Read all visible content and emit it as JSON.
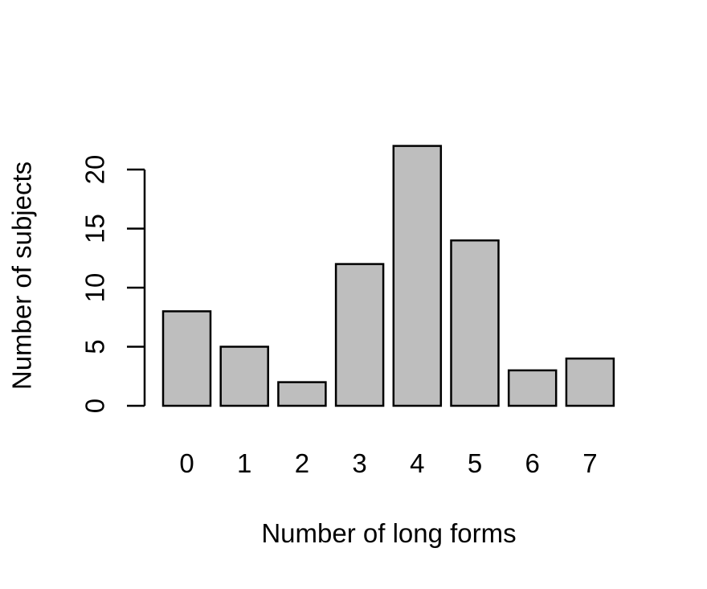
{
  "chart_data": {
    "type": "bar",
    "title": "",
    "xlabel": "Number of long forms",
    "ylabel": "Number of subjects",
    "categories": [
      "0",
      "1",
      "2",
      "3",
      "4",
      "5",
      "6",
      "7"
    ],
    "values": [
      8,
      5,
      2,
      12,
      22,
      14,
      3,
      4
    ],
    "ylim": [
      0,
      22
    ],
    "yticks": [
      "0",
      "5",
      "10",
      "15",
      "20"
    ],
    "grid": false,
    "legend": "none",
    "bar_color": "#bebebe",
    "edge_color": "#000000"
  }
}
